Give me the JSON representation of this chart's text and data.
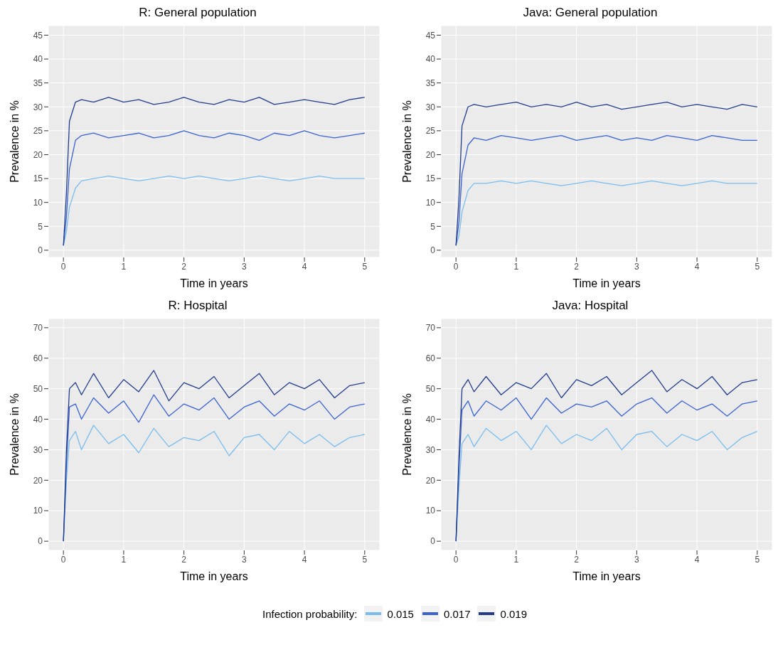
{
  "chart_data": [
    {
      "type": "line",
      "title": "R: General population",
      "xlabel": "Time in years",
      "ylabel": "Prevalence in %",
      "x": [
        0,
        0.05,
        0.1,
        0.2,
        0.3,
        0.5,
        0.75,
        1,
        1.25,
        1.5,
        1.75,
        2,
        2.25,
        2.5,
        2.75,
        3,
        3.25,
        3.5,
        3.75,
        4,
        4.25,
        4.5,
        4.75,
        5
      ],
      "xlim": [
        -0.25,
        5.25
      ],
      "xticks": [
        0,
        1,
        2,
        3,
        4,
        5
      ],
      "ylim": [
        -1.5,
        47
      ],
      "yticks": [
        0,
        5,
        10,
        15,
        20,
        25,
        30,
        35,
        40,
        45
      ],
      "grid": true,
      "marker": "none",
      "line_style": "solid",
      "legend": "bottom",
      "legend_title": "Infection probability:",
      "series": [
        {
          "name": "0.015",
          "color": "#79bdee",
          "values": [
            1,
            4,
            9,
            13,
            14.5,
            15,
            15.5,
            15,
            14.5,
            15,
            15.5,
            15,
            15.5,
            15,
            14.5,
            15,
            15.5,
            15,
            14.5,
            15,
            15.5,
            15,
            15,
            15
          ]
        },
        {
          "name": "0.017",
          "color": "#3a62d0",
          "values": [
            1,
            7,
            17,
            23,
            24,
            24.5,
            23.5,
            24,
            24.5,
            23.5,
            24,
            25,
            24,
            23.5,
            24.5,
            24,
            23,
            24.5,
            24,
            25,
            24,
            23.5,
            24,
            24.5
          ]
        },
        {
          "name": "0.019",
          "color": "#223d8c",
          "values": [
            1,
            12,
            27,
            31,
            31.5,
            31,
            32,
            31,
            31.5,
            30.5,
            31,
            32,
            31,
            30.5,
            31.5,
            31,
            32,
            30.5,
            31,
            31.5,
            31,
            30.5,
            31.5,
            32
          ]
        }
      ]
    },
    {
      "type": "line",
      "title": "Java: General population",
      "xlabel": "Time in years",
      "ylabel": "Prevalence in %",
      "x": [
        0,
        0.05,
        0.1,
        0.2,
        0.3,
        0.5,
        0.75,
        1,
        1.25,
        1.5,
        1.75,
        2,
        2.25,
        2.5,
        2.75,
        3,
        3.25,
        3.5,
        3.75,
        4,
        4.25,
        4.5,
        4.75,
        5
      ],
      "xlim": [
        -0.25,
        5.25
      ],
      "xticks": [
        0,
        1,
        2,
        3,
        4,
        5
      ],
      "ylim": [
        -1.5,
        47
      ],
      "yticks": [
        0,
        5,
        10,
        15,
        20,
        25,
        30,
        35,
        40,
        45
      ],
      "grid": true,
      "marker": "none",
      "line_style": "solid",
      "series": [
        {
          "name": "0.015",
          "color": "#79bdee",
          "values": [
            1,
            3,
            8,
            12.5,
            14,
            14,
            14.5,
            14,
            14.5,
            14,
            13.5,
            14,
            14.5,
            14,
            13.5,
            14,
            14.5,
            14,
            13.5,
            14,
            14.5,
            14,
            14,
            14
          ]
        },
        {
          "name": "0.017",
          "color": "#3a62d0",
          "values": [
            1,
            6,
            16,
            22,
            23.5,
            23,
            24,
            23.5,
            23,
            23.5,
            24,
            23,
            23.5,
            24,
            23,
            23.5,
            23,
            24,
            23.5,
            23,
            24,
            23.5,
            23,
            23
          ]
        },
        {
          "name": "0.019",
          "color": "#223d8c",
          "values": [
            1,
            11,
            26,
            30,
            30.5,
            30,
            30.5,
            31,
            30,
            30.5,
            30,
            31,
            30,
            30.5,
            29.5,
            30,
            30.5,
            31,
            30,
            30.5,
            30,
            29.5,
            30.5,
            30
          ]
        }
      ]
    },
    {
      "type": "line",
      "title": "R: Hospital",
      "xlabel": "Time in years",
      "ylabel": "Prevalence in %",
      "x": [
        0,
        0.05,
        0.1,
        0.2,
        0.3,
        0.5,
        0.75,
        1,
        1.25,
        1.5,
        1.75,
        2,
        2.25,
        2.5,
        2.75,
        3,
        3.25,
        3.5,
        3.75,
        4,
        4.25,
        4.5,
        4.75,
        5
      ],
      "xlim": [
        -0.25,
        5.25
      ],
      "xticks": [
        0,
        1,
        2,
        3,
        4,
        5
      ],
      "ylim": [
        -3,
        73
      ],
      "yticks": [
        0,
        10,
        20,
        30,
        40,
        50,
        60,
        70
      ],
      "grid": true,
      "marker": "none",
      "line_style": "solid",
      "series": [
        {
          "name": "0.015",
          "color": "#79bdee",
          "values": [
            0,
            20,
            33,
            36,
            30,
            38,
            32,
            35,
            29,
            37,
            31,
            34,
            33,
            36,
            28,
            34,
            35,
            30,
            36,
            32,
            35,
            31,
            34,
            35
          ]
        },
        {
          "name": "0.017",
          "color": "#3a62d0",
          "values": [
            0,
            25,
            44,
            45,
            40,
            47,
            42,
            46,
            39,
            48,
            41,
            45,
            43,
            47,
            40,
            44,
            46,
            41,
            45,
            43,
            46,
            40,
            44,
            45
          ]
        },
        {
          "name": "0.019",
          "color": "#223d8c",
          "values": [
            0,
            30,
            50,
            52,
            48,
            55,
            47,
            53,
            49,
            56,
            46,
            52,
            50,
            54,
            47,
            51,
            55,
            48,
            52,
            50,
            53,
            47,
            51,
            52
          ]
        }
      ]
    },
    {
      "type": "line",
      "title": "Java: Hospital",
      "xlabel": "Time in years",
      "ylabel": "Prevalence in %",
      "x": [
        0,
        0.05,
        0.1,
        0.2,
        0.3,
        0.5,
        0.75,
        1,
        1.25,
        1.5,
        1.75,
        2,
        2.25,
        2.5,
        2.75,
        3,
        3.25,
        3.5,
        3.75,
        4,
        4.25,
        4.5,
        4.75,
        5
      ],
      "xlim": [
        -0.25,
        5.25
      ],
      "xticks": [
        0,
        1,
        2,
        3,
        4,
        5
      ],
      "ylim": [
        -3,
        73
      ],
      "yticks": [
        0,
        10,
        20,
        30,
        40,
        50,
        60,
        70
      ],
      "grid": true,
      "marker": "none",
      "line_style": "solid",
      "series": [
        {
          "name": "0.015",
          "color": "#79bdee",
          "values": [
            0,
            18,
            32,
            35,
            31,
            37,
            33,
            36,
            30,
            38,
            32,
            35,
            33,
            37,
            30,
            35,
            36,
            31,
            35,
            33,
            36,
            30,
            34,
            36
          ]
        },
        {
          "name": "0.017",
          "color": "#3a62d0",
          "values": [
            0,
            24,
            43,
            46,
            41,
            46,
            43,
            47,
            40,
            47,
            42,
            45,
            44,
            46,
            41,
            45,
            47,
            42,
            46,
            43,
            45,
            41,
            45,
            46
          ]
        },
        {
          "name": "0.019",
          "color": "#223d8c",
          "values": [
            0,
            28,
            50,
            53,
            49,
            54,
            48,
            52,
            50,
            55,
            47,
            53,
            51,
            54,
            48,
            52,
            56,
            49,
            53,
            50,
            54,
            48,
            52,
            53
          ]
        }
      ]
    }
  ]
}
